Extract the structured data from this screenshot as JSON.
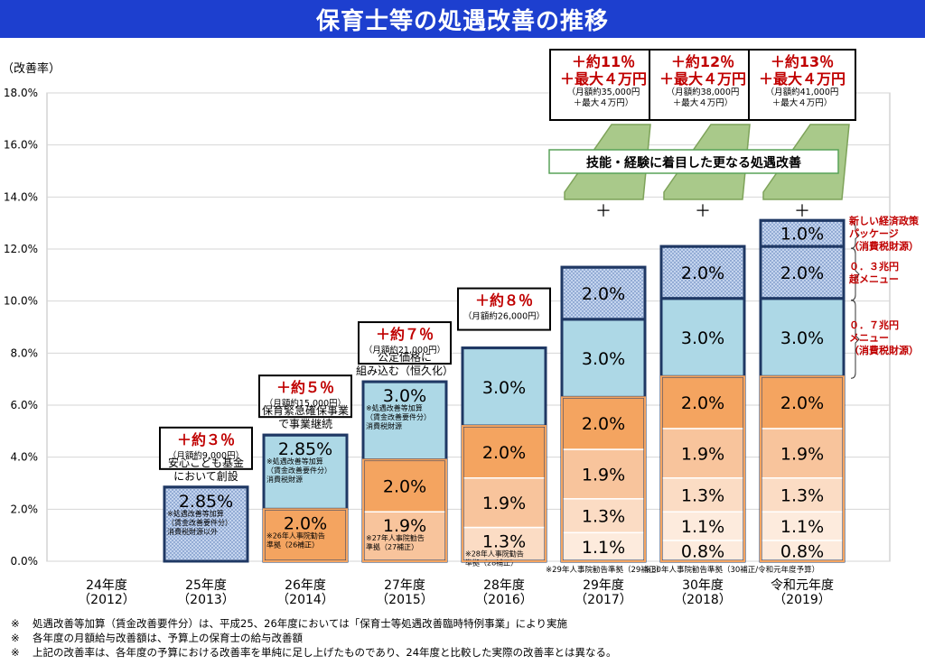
{
  "title": "保育士等の処遇改善の推移",
  "colors": {
    "title_bg": "#1d3fcf",
    "bar_border": "#1f3864",
    "orange_dark": "#f4a460",
    "orange_mid": "#f8c49c",
    "orange_light": "#fbdcc4",
    "orange_pale": "#fdebdd",
    "blue_light": "#add8e6",
    "blue_dotted": "#c4d4ee",
    "green_shape": "#a9c98a",
    "annotation_red": "#c00000"
  },
  "chart_data": {
    "type": "bar",
    "stacked": true,
    "ylabel": "（改善率）",
    "ylim": [
      0,
      18
    ],
    "yticks": [
      {
        "value": 0,
        "label": "0.0%"
      },
      {
        "value": 2,
        "label": "2.0%"
      },
      {
        "value": 4,
        "label": "4.0%"
      },
      {
        "value": 6,
        "label": "6.0%"
      },
      {
        "value": 8,
        "label": "8.0%"
      },
      {
        "value": 10,
        "label": "10.0%"
      },
      {
        "value": 12,
        "label": "12.0%"
      },
      {
        "value": 14,
        "label": "14.0%"
      },
      {
        "value": 16,
        "label": "16.0%"
      },
      {
        "value": 18,
        "label": "18.0%"
      }
    ],
    "grid": true,
    "categories": [
      {
        "l1": "24年度",
        "l2": "（2012）"
      },
      {
        "l1": "25年度",
        "l2": "（2013）"
      },
      {
        "l1": "26年度",
        "l2": "（2014）"
      },
      {
        "l1": "27年度",
        "l2": "（2015）"
      },
      {
        "l1": "28年度",
        "l2": "（2016）"
      },
      {
        "l1": "29年度",
        "l2": "（2017）"
      },
      {
        "l1": "30年度",
        "l2": "（2018）"
      },
      {
        "l1": "令和元年度",
        "l2": "（2019）"
      }
    ],
    "bars": [
      {
        "segments": []
      },
      {
        "segments": [
          {
            "value": 2.85,
            "label": "2.85%",
            "style": "dotted",
            "note": [
              "※処遇改善等加算",
              "（賃金改善要件分）",
              "消費税財源以外"
            ]
          }
        ]
      },
      {
        "segments": [
          {
            "value": 2.0,
            "label": "2.0%",
            "style": "orange_dark",
            "note": [
              "※26年人事院勧告",
              "準拠（26補正）"
            ]
          },
          {
            "value": 2.85,
            "label": "2.85%",
            "style": "blue_light",
            "note": [
              "※処遇改善等加算",
              "（賃金改善要件分）",
              "消費税財源"
            ]
          }
        ]
      },
      {
        "segments": [
          {
            "value": 1.9,
            "label": "1.9%",
            "style": "orange_mid",
            "note": [
              "※27年人事院勧告",
              "準拠（27補正）"
            ]
          },
          {
            "value": 2.0,
            "label": "2.0%",
            "style": "orange_dark"
          },
          {
            "value": 3.0,
            "label": "3.0%",
            "style": "blue_light",
            "note": [
              "※処遇改善等加算",
              "（賃金改善要件分）",
              "消費税財源"
            ]
          }
        ]
      },
      {
        "segments": [
          {
            "value": 1.3,
            "label": "1.3%",
            "style": "orange_light",
            "note": [
              "※28年人事院勧告",
              "準拠（28補正）"
            ]
          },
          {
            "value": 1.9,
            "label": "1.9%",
            "style": "orange_mid"
          },
          {
            "value": 2.0,
            "label": "2.0%",
            "style": "orange_dark"
          },
          {
            "value": 3.0,
            "label": "3.0%",
            "style": "blue_light"
          }
        ]
      },
      {
        "segments": [
          {
            "value": 1.1,
            "label": "1.1%",
            "style": "orange_pale"
          },
          {
            "value": 1.3,
            "label": "1.3%",
            "style": "orange_light"
          },
          {
            "value": 1.9,
            "label": "1.9%",
            "style": "orange_mid"
          },
          {
            "value": 2.0,
            "label": "2.0%",
            "style": "orange_dark"
          },
          {
            "value": 3.0,
            "label": "3.0%",
            "style": "blue_light"
          },
          {
            "value": 2.0,
            "label": "2.0%",
            "style": "dotted"
          }
        ]
      },
      {
        "segments": [
          {
            "value": 0.8,
            "label": "0.8%",
            "style": "orange_pale"
          },
          {
            "value": 1.1,
            "label": "1.1%",
            "style": "orange_pale"
          },
          {
            "value": 1.3,
            "label": "1.3%",
            "style": "orange_light"
          },
          {
            "value": 1.9,
            "label": "1.9%",
            "style": "orange_mid"
          },
          {
            "value": 2.0,
            "label": "2.0%",
            "style": "orange_dark"
          },
          {
            "value": 3.0,
            "label": "3.0%",
            "style": "blue_light"
          },
          {
            "value": 2.0,
            "label": "2.0%",
            "style": "dotted"
          }
        ]
      },
      {
        "segments": [
          {
            "value": 0.8,
            "label": "0.8%",
            "style": "orange_pale"
          },
          {
            "value": 1.1,
            "label": "1.1%",
            "style": "orange_pale"
          },
          {
            "value": 1.3,
            "label": "1.3%",
            "style": "orange_light"
          },
          {
            "value": 1.9,
            "label": "1.9%",
            "style": "orange_mid"
          },
          {
            "value": 2.0,
            "label": "2.0%",
            "style": "orange_dark"
          },
          {
            "value": 3.0,
            "label": "3.0%",
            "style": "blue_light"
          },
          {
            "value": 2.0,
            "label": "2.0%",
            "style": "dotted"
          },
          {
            "value": 1.0,
            "label": "1.0%",
            "style": "dotted"
          }
        ]
      }
    ],
    "callouts": [
      {
        "bar": 1,
        "main": "＋約３％",
        "sub": [
          "（月額約9,000円）"
        ]
      },
      {
        "bar": 2,
        "main": "＋約５％",
        "sub": [
          "（月額約15,000円）"
        ]
      },
      {
        "bar": 3,
        "main": "＋約７％",
        "sub": [
          "（月額約21,000円）"
        ]
      },
      {
        "bar": 4,
        "main": "＋約８％",
        "sub": [
          "（月額約26,000円）"
        ]
      },
      {
        "bar": 5,
        "main": "＋約11％",
        "main2": "＋最大４万円",
        "sub": [
          "（月額約35,000円",
          "＋最大４万円）"
        ]
      },
      {
        "bar": 6,
        "main": "＋約12％",
        "main2": "＋最大４万円",
        "sub": [
          "（月額約38,000円",
          "＋最大４万円）"
        ]
      },
      {
        "bar": 7,
        "main": "＋約13％",
        "main2": "＋最大４万円",
        "sub": [
          "（月額約41,000円",
          "＋最大４万円）"
        ]
      }
    ],
    "bar_captions": [
      {
        "bar": 1,
        "lines": [
          "安心こども基金",
          "において創設"
        ]
      },
      {
        "bar": 2,
        "lines": [
          "保育緊急確保事業",
          "で事業継続"
        ]
      },
      {
        "bar": 3,
        "lines": [
          "公定価格に",
          "組み込む（恒久化）"
        ]
      }
    ],
    "bottom_notes": [
      {
        "bar": 5,
        "text": "※29年人事院勧告準拠（29補正）"
      },
      {
        "bar": 6,
        "text": "※30年人事院勧告準拠（30補正/令和元年度予算）"
      }
    ],
    "skill_banner": "技能・経験に着目した更なる処遇改善",
    "plus_sign": "＋",
    "side_labels": [
      {
        "lines": [
          "新しい経済政策",
          "パッケージ",
          "（消費税財源）"
        ]
      },
      {
        "lines": [
          "０．３兆円",
          "超メニュー"
        ]
      },
      {
        "lines": [
          "０．７兆円",
          "メニュー",
          "（消費税財源）"
        ]
      }
    ]
  },
  "footnotes": [
    {
      "mark": "※",
      "text": "処遇改善等加算（賃金改善要件分）は、平成25、26年度においては「保育士等処遇改善臨時特例事業」により実施"
    },
    {
      "mark": "※",
      "text": "各年度の月額給与改善額は、予算上の保育士の給与改善額"
    },
    {
      "mark": "※",
      "text": "上記の改善率は、各年度の予算における改善率を単純に足し上げたものであり、24年度と比較した実際の改善率とは異なる。"
    }
  ]
}
